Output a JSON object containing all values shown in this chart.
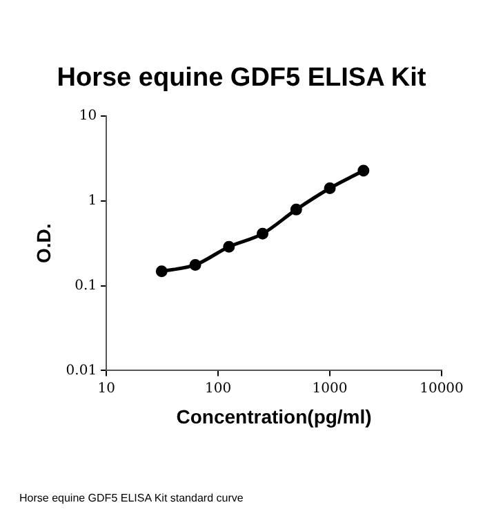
{
  "chart_data": {
    "type": "line",
    "title": "Horse equine GDF5 ELISA Kit",
    "xlabel": "Concentration(pg/ml)",
    "ylabel": "O.D.",
    "x": [
      31.25,
      62.5,
      125,
      250,
      500,
      1000,
      2000
    ],
    "series": [
      {
        "color": "#000000",
        "values": [
          0.148,
          0.176,
          0.288,
          0.41,
          0.79,
          1.41,
          2.27
        ]
      }
    ],
    "log": "xy",
    "xlim": [
      10,
      10000
    ],
    "xticks": [
      10,
      100,
      1000,
      10000
    ],
    "ylim": [
      0.01,
      10
    ],
    "yticks": [
      0.01,
      0.1,
      1,
      10
    ],
    "grid": false,
    "legend": false,
    "marker": "circle",
    "line_style": "solid",
    "annotations": [
      "Horse equine GDF5 ELISA Kit standard curve"
    ]
  }
}
